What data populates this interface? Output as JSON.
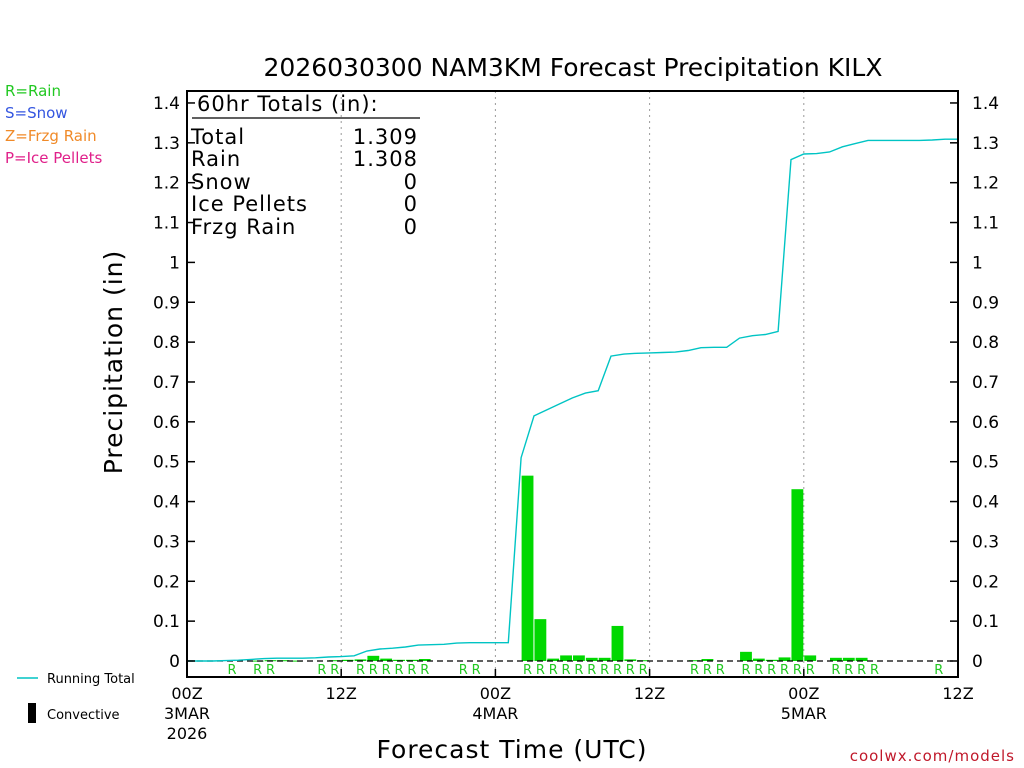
{
  "chart_data": {
    "type": "bar",
    "title": "2026030300 NAM3KM Forecast Precipitation KILX",
    "xlabel": "Forecast Time (UTC)",
    "ylabel": "Precipitation (in)",
    "ylim": [
      0,
      1.43
    ],
    "yticks": [
      "0",
      "0.1",
      "0.2",
      "0.3",
      "0.4",
      "0.5",
      "0.6",
      "0.7",
      "0.8",
      "0.9",
      "1",
      "1.1",
      "1.2",
      "1.3",
      "1.4"
    ],
    "xlim": [
      0,
      60
    ],
    "xticks": [
      {
        "hour": 0,
        "l1": "00Z",
        "l2": "3MAR",
        "l3": "2026"
      },
      {
        "hour": 12,
        "l1": "12Z",
        "l2": "",
        "l3": ""
      },
      {
        "hour": 24,
        "l1": "00Z",
        "l2": "4MAR",
        "l3": ""
      },
      {
        "hour": 36,
        "l1": "12Z",
        "l2": "",
        "l3": ""
      },
      {
        "hour": 48,
        "l1": "00Z",
        "l2": "5MAR",
        "l3": ""
      },
      {
        "hour": 60,
        "l1": "12Z",
        "l2": "",
        "l3": ""
      }
    ],
    "gridlines_hours": [
      12,
      24,
      36,
      48
    ],
    "hourly_precip": [
      0,
      0,
      0,
      0,
      0,
      0.001,
      0.002,
      0.002,
      0.001,
      0,
      0,
      0.002,
      0.003,
      0.004,
      0.013,
      0.006,
      0.003,
      0.003,
      0.005,
      0,
      0,
      0,
      0,
      0,
      0,
      0,
      0.465,
      0.105,
      0.006,
      0.014,
      0.014,
      0.008,
      0.008,
      0.088,
      0.004,
      0.002,
      0,
      0,
      0,
      0.002,
      0.005,
      0,
      0,
      0.023,
      0.006,
      0.003,
      0.009,
      0.431,
      0.014,
      0,
      0.008,
      0.008,
      0.008,
      0,
      0,
      0,
      0,
      0,
      0,
      0
    ],
    "running_total": [
      {
        "h": 0,
        "v": 0
      },
      {
        "h": 1,
        "v": 0
      },
      {
        "h": 2,
        "v": 0
      },
      {
        "h": 3,
        "v": 0.001
      },
      {
        "h": 4,
        "v": 0.002
      },
      {
        "h": 5,
        "v": 0.004
      },
      {
        "h": 6,
        "v": 0.006
      },
      {
        "h": 7,
        "v": 0.007
      },
      {
        "h": 8,
        "v": 0.007
      },
      {
        "h": 9,
        "v": 0.007
      },
      {
        "h": 10,
        "v": 0.008
      },
      {
        "h": 11,
        "v": 0.01
      },
      {
        "h": 12,
        "v": 0.011
      },
      {
        "h": 13,
        "v": 0.013
      },
      {
        "h": 14,
        "v": 0.025
      },
      {
        "h": 15,
        "v": 0.03
      },
      {
        "h": 16,
        "v": 0.032
      },
      {
        "h": 17,
        "v": 0.035
      },
      {
        "h": 18,
        "v": 0.04
      },
      {
        "h": 19,
        "v": 0.041
      },
      {
        "h": 20,
        "v": 0.042
      },
      {
        "h": 21,
        "v": 0.045
      },
      {
        "h": 22,
        "v": 0.046
      },
      {
        "h": 23,
        "v": 0.046
      },
      {
        "h": 24,
        "v": 0.046
      },
      {
        "h": 25,
        "v": 0.046
      },
      {
        "h": 26,
        "v": 0.51
      },
      {
        "h": 27,
        "v": 0.615
      },
      {
        "h": 28,
        "v": 0.63
      },
      {
        "h": 29,
        "v": 0.645
      },
      {
        "h": 30,
        "v": 0.66
      },
      {
        "h": 31,
        "v": 0.672
      },
      {
        "h": 32,
        "v": 0.678
      },
      {
        "h": 33,
        "v": 0.765
      },
      {
        "h": 34,
        "v": 0.77
      },
      {
        "h": 35,
        "v": 0.772
      },
      {
        "h": 36,
        "v": 0.773
      },
      {
        "h": 37,
        "v": 0.774
      },
      {
        "h": 38,
        "v": 0.775
      },
      {
        "h": 39,
        "v": 0.779
      },
      {
        "h": 40,
        "v": 0.786
      },
      {
        "h": 41,
        "v": 0.787
      },
      {
        "h": 42,
        "v": 0.787
      },
      {
        "h": 43,
        "v": 0.81
      },
      {
        "h": 44,
        "v": 0.816
      },
      {
        "h": 45,
        "v": 0.819
      },
      {
        "h": 46,
        "v": 0.827
      },
      {
        "h": 47,
        "v": 1.258
      },
      {
        "h": 48,
        "v": 1.272
      },
      {
        "h": 49,
        "v": 1.273
      },
      {
        "h": 50,
        "v": 1.277
      },
      {
        "h": 51,
        "v": 1.29
      },
      {
        "h": 52,
        "v": 1.298
      },
      {
        "h": 53,
        "v": 1.306
      },
      {
        "h": 54,
        "v": 1.306
      },
      {
        "h": 55,
        "v": 1.306
      },
      {
        "h": 56,
        "v": 1.306
      },
      {
        "h": 57,
        "v": 1.306
      },
      {
        "h": 58,
        "v": 1.307
      },
      {
        "h": 59,
        "v": 1.309
      },
      {
        "h": 60,
        "v": 1.309
      }
    ],
    "ptype_markers": [
      {
        "hour": 3.5,
        "label": "R"
      },
      {
        "hour": 5.5,
        "label": "R"
      },
      {
        "hour": 6.5,
        "label": "R"
      },
      {
        "hour": 10.5,
        "label": "R"
      },
      {
        "hour": 11.5,
        "label": "R"
      },
      {
        "hour": 13.5,
        "label": "R"
      },
      {
        "hour": 14.5,
        "label": "R"
      },
      {
        "hour": 15.5,
        "label": "R"
      },
      {
        "hour": 16.5,
        "label": "R"
      },
      {
        "hour": 17.5,
        "label": "R"
      },
      {
        "hour": 18.5,
        "label": "R"
      },
      {
        "hour": 21.5,
        "label": "R"
      },
      {
        "hour": 22.5,
        "label": "R"
      },
      {
        "hour": 26.5,
        "label": "R"
      },
      {
        "hour": 27.5,
        "label": "R"
      },
      {
        "hour": 28.5,
        "label": "R"
      },
      {
        "hour": 29.5,
        "label": "R"
      },
      {
        "hour": 30.5,
        "label": "R"
      },
      {
        "hour": 31.5,
        "label": "R"
      },
      {
        "hour": 32.5,
        "label": "R"
      },
      {
        "hour": 33.5,
        "label": "R"
      },
      {
        "hour": 34.5,
        "label": "R"
      },
      {
        "hour": 35.5,
        "label": "R"
      },
      {
        "hour": 39.5,
        "label": "R"
      },
      {
        "hour": 40.5,
        "label": "R"
      },
      {
        "hour": 41.5,
        "label": "R"
      },
      {
        "hour": 43.5,
        "label": "R"
      },
      {
        "hour": 44.5,
        "label": "R"
      },
      {
        "hour": 45.5,
        "label": "R"
      },
      {
        "hour": 46.5,
        "label": "R"
      },
      {
        "hour": 47.5,
        "label": "R"
      },
      {
        "hour": 48.5,
        "label": "R"
      },
      {
        "hour": 50.5,
        "label": "R"
      },
      {
        "hour": 51.5,
        "label": "R"
      },
      {
        "hour": 52.5,
        "label": "R"
      },
      {
        "hour": 53.5,
        "label": "R"
      },
      {
        "hour": 58.5,
        "label": "R"
      }
    ],
    "totals_box": {
      "header": "60hr Totals (in):",
      "rows": [
        {
          "label": "Total",
          "value": "1.309"
        },
        {
          "label": "Rain",
          "value": "1.308"
        },
        {
          "label": "Snow",
          "value": "0"
        },
        {
          "label": "Ice Pellets",
          "value": "0"
        },
        {
          "label": "Frzg Rain",
          "value": "0"
        }
      ]
    },
    "ptype_legend": [
      {
        "label": "R=Rain",
        "color": "#22c822"
      },
      {
        "label": "S=Snow",
        "color": "#3355e0"
      },
      {
        "label": "Z=Frzg Rain",
        "color": "#f08a28"
      },
      {
        "label": "P=Ice Pellets",
        "color": "#e0208a"
      }
    ],
    "series_legend": {
      "running_total": "Running Total",
      "convective": "Convective"
    },
    "colors": {
      "bars": "#00d800",
      "running_total": "#00c4c4",
      "grid": "#9a9a9a"
    },
    "credit": "coolwx.com/models"
  }
}
